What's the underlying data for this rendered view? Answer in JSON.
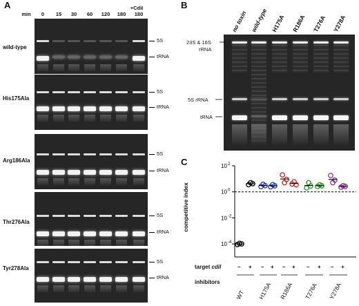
{
  "panels": {
    "A": "A",
    "B": "B",
    "C": "C"
  },
  "panelA": {
    "min_label": "min",
    "timepoints": [
      "0",
      "15",
      "30",
      "60",
      "120",
      "180",
      "180"
    ],
    "cdii_label": "+CdiI",
    "gels": [
      {
        "name": "wild-type",
        "bands": [
          "5S",
          "tRNA"
        ]
      },
      {
        "name": "His175Ala",
        "bands": [
          "5S",
          "tRNA"
        ]
      },
      {
        "name": "Arg186Ala",
        "bands": [
          "5S",
          "tRNA"
        ]
      },
      {
        "name": "Thr276Ala",
        "bands": [
          "5S",
          "tRNA"
        ]
      },
      {
        "name": "Tyr278Ala",
        "bands": [
          "5S",
          "tRNA"
        ]
      }
    ]
  },
  "panelB": {
    "lanes": [
      "no toxin",
      "wild-type",
      "H175A",
      "R186A",
      "T276A",
      "Y278A"
    ],
    "band_labels": [
      "23S & 16S",
      "rRNA",
      "5S rRNA",
      "tRNA"
    ]
  },
  "panelC": {
    "ylabel": "competitive index",
    "yticks": [
      "10",
      "10",
      "10",
      "10"
    ],
    "yexp": [
      "2",
      "0",
      "-2",
      "-4"
    ],
    "target_label": "target",
    "target_gene": "cdiI",
    "signs": [
      "–",
      "+",
      "–",
      "+",
      "–",
      "+",
      "–",
      "+",
      "–",
      "+"
    ],
    "inhibitors_label": "inhibitors",
    "groups": [
      "WT",
      "H175A",
      "R186A",
      "T276A",
      "Y278A"
    ]
  },
  "chart_data": {
    "type": "scatter",
    "ylabel": "competitive index",
    "yscale": "log",
    "ylim": [
      1e-05,
      100
    ],
    "categories": [
      "WT –",
      "WT +",
      "H175A –",
      "H175A +",
      "R186A –",
      "R186A +",
      "T276A –",
      "T276A +",
      "Y278A –",
      "Y278A +"
    ],
    "reference_line": 1,
    "series": [
      {
        "color": "#000000",
        "points": [
          [
            0,
            9e-05
          ],
          [
            0,
            0.00011
          ],
          [
            0,
            0.0001
          ],
          [
            1,
            3.5
          ],
          [
            1,
            5
          ],
          [
            1,
            4.2
          ]
        ]
      },
      {
        "color": "#1a35c8",
        "points": [
          [
            2,
            2.5
          ],
          [
            2,
            3.8
          ],
          [
            2,
            3.0
          ],
          [
            3,
            2.4
          ],
          [
            3,
            3.6
          ],
          [
            3,
            2.9
          ]
        ]
      },
      {
        "color": "#c81e1e",
        "points": [
          [
            4,
            20
          ],
          [
            4,
            5
          ],
          [
            4,
            9
          ],
          [
            5,
            4
          ],
          [
            5,
            6
          ],
          [
            5,
            3.5
          ]
        ]
      },
      {
        "color": "#1f9a1f",
        "points": [
          [
            6,
            2
          ],
          [
            6,
            5
          ],
          [
            6,
            2.8
          ],
          [
            7,
            2.6
          ],
          [
            7,
            3.5
          ],
          [
            7,
            2.9
          ]
        ]
      },
      {
        "color": "#8a2a9a",
        "points": [
          [
            8,
            18
          ],
          [
            8,
            5
          ],
          [
            8,
            8
          ],
          [
            9,
            2.3
          ],
          [
            9,
            3.0
          ],
          [
            9,
            2.6
          ]
        ]
      }
    ]
  }
}
